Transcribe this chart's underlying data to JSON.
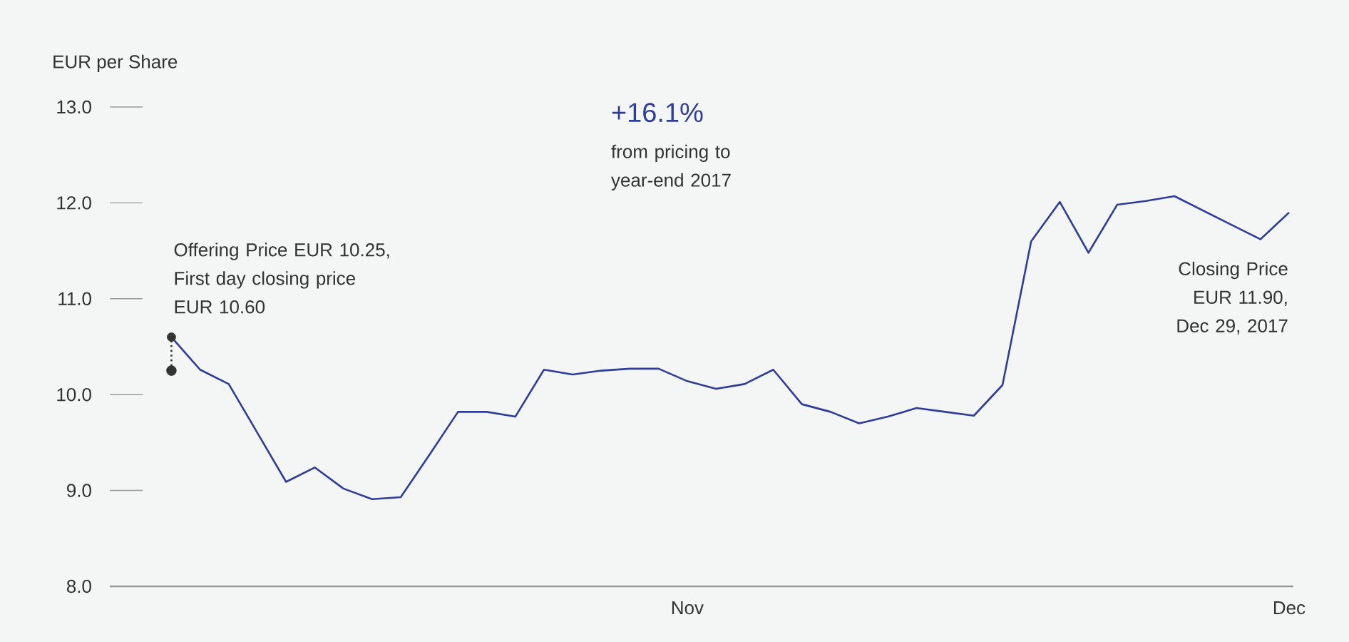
{
  "chart_data": {
    "type": "line",
    "ylabel": "EUR per Share",
    "categories": [
      null,
      null,
      null,
      null,
      null,
      null,
      null,
      null,
      null,
      null,
      null,
      null,
      null,
      null,
      null,
      null,
      null,
      null,
      "Nov",
      null,
      null,
      null,
      null,
      null,
      null,
      null,
      null,
      null,
      null,
      null,
      null,
      null,
      null,
      null,
      null,
      null,
      null,
      null,
      null,
      "Dec"
    ],
    "ylim": [
      8,
      13
    ],
    "yticks": [
      {
        "value": 8,
        "label": "8.0"
      },
      {
        "value": 9,
        "label": "9.0"
      },
      {
        "value": 10,
        "label": "10.0"
      },
      {
        "value": 11,
        "label": "11.0"
      },
      {
        "value": 12,
        "label": "12.0"
      },
      {
        "value": 13,
        "label": "13.0"
      }
    ],
    "series": [
      {
        "color": "#2e3d99",
        "values": [
          10.6,
          10.26,
          10.11,
          9.6,
          9.09,
          9.24,
          9.02,
          8.91,
          8.93,
          9.37,
          9.82,
          9.82,
          9.77,
          10.26,
          10.21,
          10.25,
          10.27,
          10.27,
          10.14,
          10.06,
          10.11,
          10.26,
          9.9,
          9.82,
          9.7,
          9.77,
          9.86,
          9.82,
          9.78,
          10.1,
          11.6,
          12.01,
          11.48,
          11.98,
          12.02,
          12.07,
          11.92,
          11.77,
          11.62,
          11.9
        ]
      },
      {
        "color": "#333333",
        "values": [
          10.25,
          null,
          null,
          null,
          null,
          null,
          null,
          null,
          null,
          null,
          null,
          null,
          null,
          null,
          null,
          null,
          null,
          null,
          null,
          null,
          null,
          null,
          null,
          null,
          null,
          null,
          null,
          null,
          null,
          null,
          null,
          null,
          null,
          null,
          null,
          null,
          null,
          null,
          null,
          null
        ],
        "errors": [
          [
            10.25,
            10.6
          ],
          null,
          null,
          null,
          null,
          null,
          null,
          null,
          null,
          null,
          null,
          null,
          null,
          null,
          null,
          null,
          null,
          null,
          null,
          null,
          null,
          null,
          null,
          null,
          null,
          null,
          null,
          null,
          null,
          null,
          null,
          null,
          null,
          null,
          null,
          null,
          null,
          null,
          null,
          null
        ],
        "marker": "circle",
        "line_style": "dotted"
      }
    ],
    "annotations": [
      "+16.1%",
      "from pricing to year-end 2017",
      "Offering Price EUR 10.25, First day closing price EUR 10.60",
      "Closing Price EUR 11.90, Dec 29, 2017"
    ]
  }
}
